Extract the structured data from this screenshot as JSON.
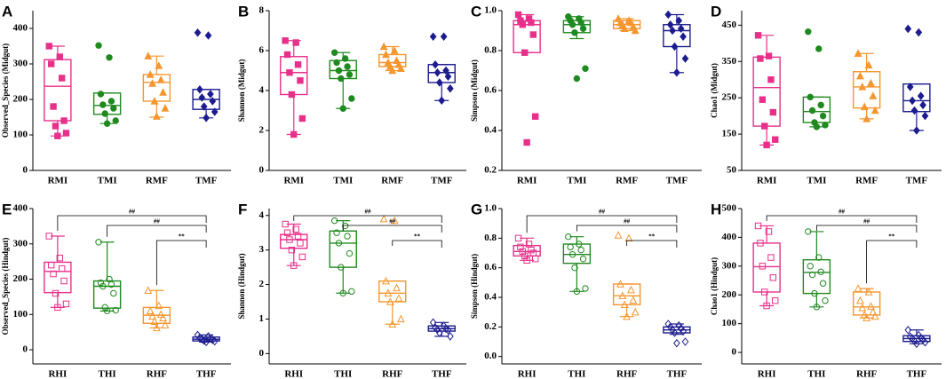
{
  "chart_data": [
    {
      "type": "box",
      "label": "A",
      "ylabel": "Observed_Species (Midgut)",
      "categories": [
        "RMI",
        "TMI",
        "RMF",
        "TMF"
      ],
      "colors": [
        "#e8308a",
        "#1f8a1f",
        "#f5962e",
        "#1c1c8f"
      ],
      "markers": [
        "square",
        "circle",
        "triangle",
        "diamond"
      ],
      "filled": true,
      "ylim": [
        0,
        450
      ],
      "yticks": [
        0,
        100,
        200,
        300,
        400
      ],
      "boxes": [
        {
          "whisker_low": 97,
          "q1": 140,
          "median": 237,
          "q3": 312,
          "whisker_high": 350,
          "points": [
            350,
            320,
            300,
            260,
            180,
            140,
            125,
            105,
            97
          ]
        },
        {
          "whisker_low": 132,
          "q1": 158,
          "median": 183,
          "q3": 218,
          "whisker_high": 218,
          "points": [
            352,
            318,
            215,
            195,
            185,
            175,
            160,
            140,
            132
          ]
        },
        {
          "whisker_low": 150,
          "q1": 195,
          "median": 248,
          "q3": 270,
          "whisker_high": 322,
          "points": [
            322,
            295,
            270,
            255,
            245,
            220,
            195,
            175,
            152
          ]
        },
        {
          "whisker_low": 148,
          "q1": 172,
          "median": 200,
          "q3": 228,
          "whisker_high": 228,
          "points": [
            388,
            380,
            228,
            215,
            205,
            195,
            180,
            165,
            148
          ]
        }
      ]
    },
    {
      "type": "box",
      "label": "B",
      "ylabel": "Shannon (Midgut)",
      "categories": [
        "RMI",
        "TMI",
        "RMF",
        "TMF"
      ],
      "colors": [
        "#e8308a",
        "#1f8a1f",
        "#f5962e",
        "#1c1c8f"
      ],
      "markers": [
        "square",
        "circle",
        "triangle",
        "diamond"
      ],
      "filled": true,
      "ylim": [
        0,
        8
      ],
      "yticks": [
        0,
        2,
        4,
        6,
        8
      ],
      "boxes": [
        {
          "whisker_low": 1.8,
          "q1": 3.8,
          "median": 4.9,
          "q3": 5.7,
          "whisker_high": 6.5,
          "points": [
            6.5,
            6.4,
            5.8,
            5.3,
            4.9,
            4.5,
            3.8,
            2.6,
            1.8
          ]
        },
        {
          "whisker_low": 3.1,
          "q1": 4.6,
          "median": 5.0,
          "q3": 5.5,
          "whisker_high": 5.9,
          "points": [
            5.9,
            5.6,
            5.4,
            5.2,
            5.0,
            4.8,
            4.6,
            3.6,
            3.1
          ]
        },
        {
          "whisker_low": 5.0,
          "q1": 5.2,
          "median": 5.4,
          "q3": 5.8,
          "whisker_high": 6.2,
          "points": [
            6.2,
            6.0,
            5.8,
            5.5,
            5.4,
            5.3,
            5.2,
            5.1,
            5.0
          ]
        },
        {
          "whisker_low": 3.5,
          "q1": 4.4,
          "median": 4.9,
          "q3": 5.3,
          "whisker_high": 5.3,
          "points": [
            6.7,
            6.7,
            5.3,
            5.0,
            4.9,
            4.7,
            4.4,
            4.1,
            3.5
          ]
        }
      ]
    },
    {
      "type": "box",
      "label": "C",
      "ylabel": "Simpson (Midgut)",
      "categories": [
        "RMI",
        "TMI",
        "RMF",
        "TMF"
      ],
      "colors": [
        "#e8308a",
        "#1f8a1f",
        "#f5962e",
        "#1c1c8f"
      ],
      "markers": [
        "square",
        "circle",
        "triangle",
        "diamond"
      ],
      "filled": true,
      "ylim": [
        0.2,
        1.0
      ],
      "yticks": [
        0.2,
        0.4,
        0.6,
        0.8,
        {
          "value": 1,
          "label": "1.0"
        }
      ],
      "boxes": [
        {
          "whisker_low": 0.79,
          "q1": 0.79,
          "median": 0.93,
          "q3": 0.95,
          "whisker_high": 0.98,
          "points": [
            0.98,
            0.96,
            0.95,
            0.94,
            0.93,
            0.88,
            0.79,
            0.47,
            0.34
          ]
        },
        {
          "whisker_low": 0.86,
          "q1": 0.89,
          "median": 0.93,
          "q3": 0.95,
          "whisker_high": 0.97,
          "points": [
            0.97,
            0.96,
            0.95,
            0.94,
            0.93,
            0.91,
            0.89,
            0.71,
            0.66
          ]
        },
        {
          "whisker_low": 0.9,
          "q1": 0.91,
          "median": 0.93,
          "q3": 0.95,
          "whisker_high": 0.96,
          "points": [
            0.96,
            0.95,
            0.94,
            0.94,
            0.93,
            0.92,
            0.91,
            0.9
          ]
        },
        {
          "whisker_low": 0.69,
          "q1": 0.82,
          "median": 0.9,
          "q3": 0.93,
          "whisker_high": 0.98,
          "points": [
            0.98,
            0.95,
            0.93,
            0.91,
            0.9,
            0.87,
            0.82,
            0.76,
            0.69
          ]
        }
      ]
    },
    {
      "type": "box",
      "label": "D",
      "ylabel": "Chao1 (Midgut)",
      "categories": [
        "RMI",
        "TMI",
        "RMF",
        "TMF"
      ],
      "colors": [
        "#e8308a",
        "#1f8a1f",
        "#f5962e",
        "#1c1c8f"
      ],
      "markers": [
        "square",
        "circle",
        "triangle",
        "diamond"
      ],
      "filled": true,
      "ylim": [
        50,
        490
      ],
      "yticks": [
        50,
        150,
        250,
        350,
        450
      ],
      "boxes": [
        {
          "whisker_low": 120,
          "q1": 172,
          "median": 278,
          "q3": 362,
          "whisker_high": 422,
          "points": [
            422,
            365,
            358,
            300,
            245,
            210,
            172,
            135,
            120
          ]
        },
        {
          "whisker_low": 170,
          "q1": 182,
          "median": 212,
          "q3": 252,
          "whisker_high": 252,
          "points": [
            432,
            385,
            252,
            230,
            215,
            200,
            182,
            175,
            170
          ]
        },
        {
          "whisker_low": 192,
          "q1": 222,
          "median": 280,
          "q3": 322,
          "whisker_high": 372,
          "points": [
            372,
            340,
            310,
            290,
            280,
            255,
            225,
            215,
            192
          ]
        },
        {
          "whisker_low": 160,
          "q1": 212,
          "median": 242,
          "q3": 288,
          "whisker_high": 288,
          "points": [
            440,
            430,
            280,
            255,
            242,
            230,
            215,
            200,
            160
          ]
        }
      ]
    },
    {
      "type": "box",
      "label": "E",
      "ylabel": "Observed_Species (Hindgut)",
      "categories": [
        "RHI",
        "THI",
        "RHF",
        "THF"
      ],
      "colors": [
        "#e8308a",
        "#1f8a1f",
        "#f5962e",
        "#1c1c8f"
      ],
      "markers": [
        "square",
        "circle",
        "triangle",
        "diamond"
      ],
      "filled": false,
      "ylim": [
        -40,
        400
      ],
      "yticks": [
        0,
        100,
        200,
        300,
        400
      ],
      "boxes": [
        {
          "whisker_low": 120,
          "q1": 162,
          "median": 222,
          "q3": 248,
          "whisker_high": 322,
          "points": [
            322,
            260,
            240,
            230,
            215,
            195,
            160,
            130,
            120
          ]
        },
        {
          "whisker_low": 110,
          "q1": 118,
          "median": 180,
          "q3": 195,
          "whisker_high": 305,
          "points": [
            305,
            200,
            190,
            185,
            180,
            160,
            120,
            112,
            110
          ]
        },
        {
          "whisker_low": 62,
          "q1": 75,
          "median": 98,
          "q3": 120,
          "whisker_high": 168,
          "points": [
            168,
            125,
            110,
            100,
            95,
            90,
            80,
            70,
            62
          ]
        },
        {
          "whisker_low": 22,
          "q1": 25,
          "median": 30,
          "q3": 36,
          "whisker_high": 42,
          "points": [
            42,
            38,
            34,
            32,
            30,
            28,
            26,
            24,
            22
          ]
        }
      ],
      "brackets": [
        {
          "from": 0,
          "to": 3,
          "label": "##"
        },
        {
          "from": 1,
          "to": 3,
          "label": "##"
        },
        {
          "from": 2,
          "to": 3,
          "label": "**"
        }
      ]
    },
    {
      "type": "box",
      "label": "F",
      "ylabel": "Shannon (Hindgut)",
      "categories": [
        "RHI",
        "THI",
        "RHF",
        "THF"
      ],
      "colors": [
        "#e8308a",
        "#1f8a1f",
        "#f5962e",
        "#1c1c8f"
      ],
      "markers": [
        "square",
        "circle",
        "triangle",
        "diamond"
      ],
      "filled": false,
      "ylim": [
        -0.3,
        4.2
      ],
      "yticks": [
        0,
        1,
        2,
        3,
        4
      ],
      "boxes": [
        {
          "whisker_low": 2.55,
          "q1": 3.05,
          "median": 3.3,
          "q3": 3.45,
          "whisker_high": 3.75,
          "points": [
            3.75,
            3.6,
            3.5,
            3.4,
            3.3,
            3.2,
            3.0,
            2.8,
            2.55
          ]
        },
        {
          "whisker_low": 1.75,
          "q1": 2.5,
          "median": 3.2,
          "q3": 3.55,
          "whisker_high": 3.85,
          "points": [
            3.85,
            3.7,
            3.5,
            3.4,
            3.2,
            2.9,
            2.5,
            1.8,
            1.75
          ]
        },
        {
          "whisker_low": 0.85,
          "q1": 1.5,
          "median": 1.75,
          "q3": 2.1,
          "whisker_high": 2.1,
          "points": [
            3.9,
            3.85,
            2.1,
            1.9,
            1.75,
            1.6,
            1.5,
            1.0,
            0.85
          ]
        },
        {
          "whisker_low": 0.5,
          "q1": 0.65,
          "median": 0.72,
          "q3": 0.8,
          "whisker_high": 0.9,
          "points": [
            0.9,
            0.8,
            0.75,
            0.72,
            0.7,
            0.68,
            0.6,
            0.5
          ]
        }
      ],
      "brackets": [
        {
          "from": 0,
          "to": 3,
          "label": "##"
        },
        {
          "from": 1,
          "to": 3,
          "label": "##"
        },
        {
          "from": 2,
          "to": 3,
          "label": "**"
        }
      ]
    },
    {
      "type": "box",
      "label": "G",
      "ylabel": "Simpson (Hindgut)",
      "categories": [
        "RHI",
        "THI",
        "RHF",
        "THF"
      ],
      "colors": [
        "#e8308a",
        "#1f8a1f",
        "#f5962e",
        "#1c1c8f"
      ],
      "markers": [
        "square",
        "circle",
        "triangle",
        "diamond"
      ],
      "filled": false,
      "ylim": [
        -0.05,
        1.0
      ],
      "yticks": [
        {
          "value": 0,
          "label": "0.0"
        },
        0.2,
        0.4,
        0.6,
        0.8,
        {
          "value": 1,
          "label": "1.0"
        }
      ],
      "boxes": [
        {
          "whisker_low": 0.65,
          "q1": 0.68,
          "median": 0.71,
          "q3": 0.75,
          "whisker_high": 0.8,
          "points": [
            0.8,
            0.76,
            0.74,
            0.72,
            0.71,
            0.7,
            0.68,
            0.66,
            0.65
          ]
        },
        {
          "whisker_low": 0.44,
          "q1": 0.63,
          "median": 0.69,
          "q3": 0.76,
          "whisker_high": 0.81,
          "points": [
            0.81,
            0.76,
            0.74,
            0.72,
            0.69,
            0.66,
            0.6,
            0.46,
            0.44
          ]
        },
        {
          "whisker_low": 0.27,
          "q1": 0.35,
          "median": 0.41,
          "q3": 0.49,
          "whisker_high": 0.49,
          "points": [
            0.82,
            0.8,
            0.49,
            0.45,
            0.41,
            0.38,
            0.35,
            0.3,
            0.27
          ]
        },
        {
          "whisker_low": 0.15,
          "q1": 0.16,
          "median": 0.18,
          "q3": 0.2,
          "whisker_high": 0.22,
          "points": [
            0.22,
            0.21,
            0.2,
            0.19,
            0.18,
            0.17,
            0.16,
            0.1,
            0.09
          ]
        }
      ],
      "brackets": [
        {
          "from": 0,
          "to": 3,
          "label": "##"
        },
        {
          "from": 1,
          "to": 3,
          "label": "##"
        },
        {
          "from": 2,
          "to": 3,
          "label": "**"
        }
      ]
    },
    {
      "type": "box",
      "label": "H",
      "ylabel": "Chao1 (Hindgut)",
      "categories": [
        "RHI",
        "THI",
        "RHF",
        "THF"
      ],
      "colors": [
        "#e8308a",
        "#1f8a1f",
        "#f5962e",
        "#1c1c8f"
      ],
      "markers": [
        "square",
        "circle",
        "triangle",
        "diamond"
      ],
      "filled": false,
      "ylim": [
        -40,
        500
      ],
      "yticks": [
        0,
        100,
        200,
        300,
        400,
        500
      ],
      "boxes": [
        {
          "whisker_low": 162,
          "q1": 210,
          "median": 298,
          "q3": 380,
          "whisker_high": 440,
          "points": [
            440,
            420,
            380,
            330,
            300,
            260,
            210,
            180,
            162
          ]
        },
        {
          "whisker_low": 158,
          "q1": 205,
          "median": 278,
          "q3": 322,
          "whisker_high": 420,
          "points": [
            420,
            330,
            300,
            280,
            270,
            240,
            205,
            180,
            158
          ]
        },
        {
          "whisker_low": 120,
          "q1": 130,
          "median": 158,
          "q3": 210,
          "whisker_high": 222,
          "points": [
            222,
            210,
            180,
            160,
            155,
            140,
            130,
            125,
            120
          ]
        },
        {
          "whisker_low": 30,
          "q1": 38,
          "median": 48,
          "q3": 58,
          "whisker_high": 78,
          "points": [
            78,
            60,
            55,
            50,
            48,
            45,
            40,
            35,
            30
          ]
        }
      ],
      "brackets": [
        {
          "from": 0,
          "to": 3,
          "label": "##"
        },
        {
          "from": 1,
          "to": 3,
          "label": "##"
        },
        {
          "from": 2,
          "to": 3,
          "label": "**"
        }
      ]
    }
  ]
}
